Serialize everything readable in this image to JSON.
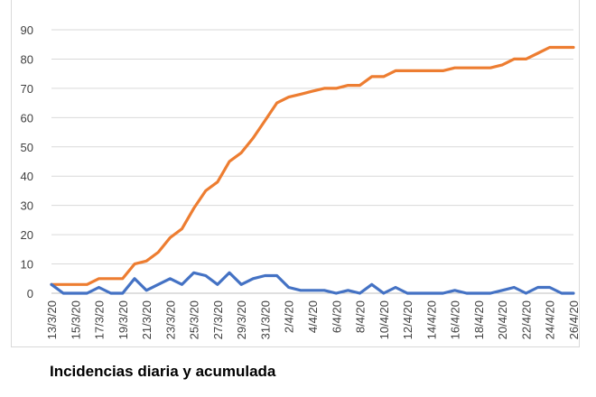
{
  "caption": "Incidencias diaria y acumulada",
  "colors": {
    "daily": "#4472c4",
    "cumulative": "#ed7d31",
    "grid": "#d9d9d9",
    "text": "#404040"
  },
  "chart_data": {
    "type": "line",
    "title": "",
    "xlabel": "",
    "ylabel": "",
    "ylim": [
      0,
      90
    ],
    "yticks": [
      0,
      10,
      20,
      30,
      40,
      50,
      60,
      70,
      80,
      90
    ],
    "grid": true,
    "categories": [
      "13/3/20",
      "14/3/20",
      "15/3/20",
      "16/3/20",
      "17/3/20",
      "18/3/20",
      "19/3/20",
      "20/3/20",
      "21/3/20",
      "22/3/20",
      "23/3/20",
      "24/3/20",
      "25/3/20",
      "26/3/20",
      "27/3/20",
      "28/3/20",
      "29/3/20",
      "30/3/20",
      "31/3/20",
      "1/4/20",
      "2/4/20",
      "3/4/20",
      "4/4/20",
      "5/4/20",
      "6/4/20",
      "7/4/20",
      "8/4/20",
      "9/4/20",
      "10/4/20",
      "11/4/20",
      "12/4/20",
      "13/4/20",
      "14/4/20",
      "15/4/20",
      "16/4/20",
      "17/4/20",
      "18/4/20",
      "19/4/20",
      "20/4/20",
      "21/4/20",
      "22/4/20",
      "23/4/20",
      "24/4/20",
      "25/4/20",
      "26/4/20"
    ],
    "tick_labels": [
      "13/3/20",
      "15/3/20",
      "17/3/20",
      "19/3/20",
      "21/3/20",
      "23/3/20",
      "25/3/20",
      "27/3/20",
      "29/3/20",
      "31/3/20",
      "2/4/20",
      "4/4/20",
      "6/4/20",
      "8/4/20",
      "10/4/20",
      "12/4/20",
      "14/4/20",
      "16/4/20",
      "18/4/20",
      "20/4/20",
      "22/4/20",
      "24/4/20",
      "26/4/20"
    ],
    "series": [
      {
        "key": "cumulative",
        "values": [
          3,
          3,
          3,
          3,
          5,
          5,
          5,
          10,
          11,
          14,
          19,
          22,
          29,
          35,
          38,
          45,
          48,
          53,
          59,
          65,
          67,
          68,
          69,
          70,
          70,
          71,
          71,
          74,
          74,
          76,
          76,
          76,
          76,
          76,
          77,
          77,
          77,
          77,
          78,
          80,
          80,
          82,
          84,
          84,
          84
        ]
      },
      {
        "key": "daily",
        "values": [
          3,
          0,
          0,
          0,
          2,
          0,
          0,
          5,
          1,
          3,
          5,
          3,
          7,
          6,
          3,
          7,
          3,
          5,
          6,
          6,
          2,
          1,
          1,
          1,
          0,
          1,
          0,
          3,
          0,
          2,
          0,
          0,
          0,
          0,
          1,
          0,
          0,
          0,
          1,
          2,
          0,
          2,
          2,
          0,
          0
        ]
      }
    ]
  }
}
